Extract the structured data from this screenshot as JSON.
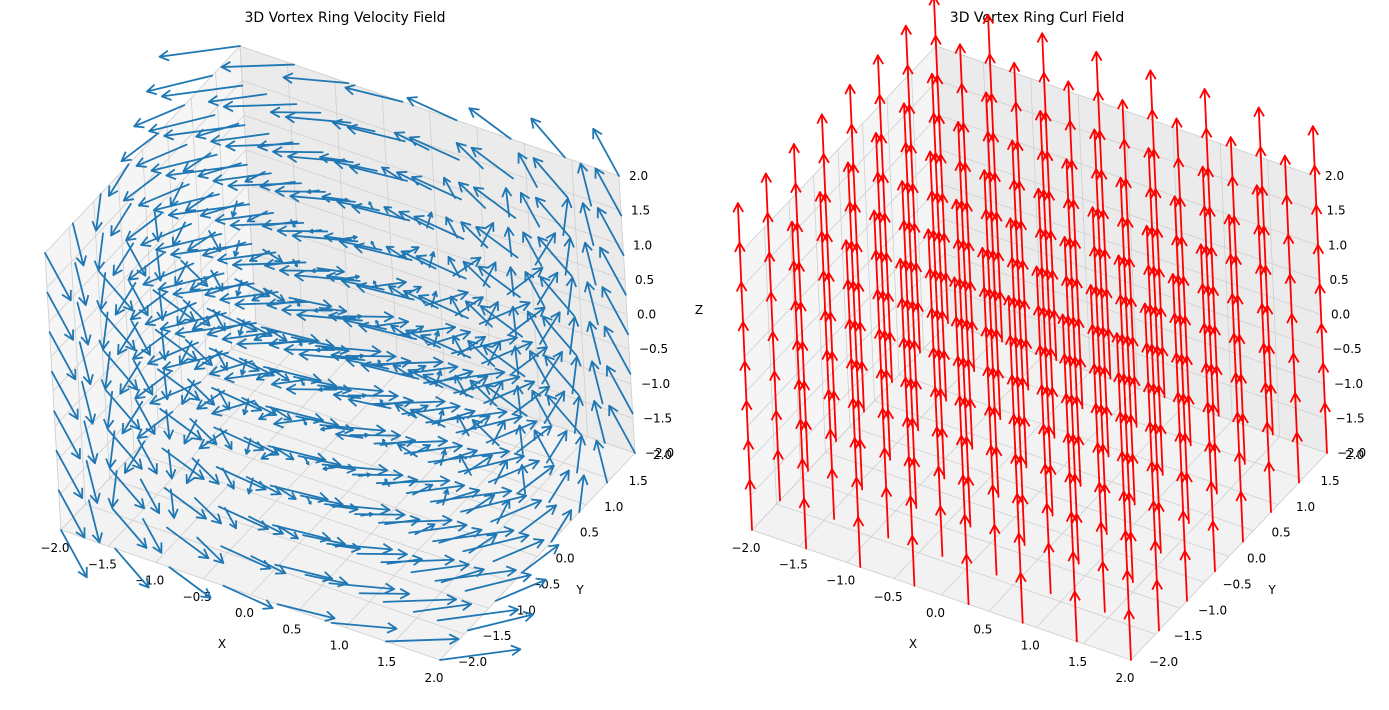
{
  "chart_data": [
    {
      "type": "quiver3d",
      "title": "3D Vortex Ring Velocity Field",
      "xlabel": "X",
      "ylabel": "Y",
      "zlabel": "Z",
      "xlim": [
        -2,
        2
      ],
      "ylim": [
        -2,
        2
      ],
      "zlim": [
        -2,
        2
      ],
      "xticks": [
        "−2.0",
        "−1.5",
        "−1.0",
        "−0.5",
        "0.0",
        "0.5",
        "1.0",
        "1.5",
        "2.0"
      ],
      "yticks": [
        "−2.0",
        "−1.5",
        "−1.0",
        "−0.5",
        "0.0",
        "0.5",
        "1.0",
        "1.5",
        "2.0"
      ],
      "zticks": [
        "−2.0",
        "−1.5",
        "−1.0",
        "−0.5",
        "0.0",
        "0.5",
        "1.0",
        "1.5",
        "2.0"
      ],
      "grid": true,
      "field": "circulation about the z-axis (vx = -y, vy = x), vz = 0",
      "grid_points_per_axis": 8,
      "color": "#1f77b4"
    },
    {
      "type": "quiver3d",
      "title": "3D Vortex Ring Curl Field",
      "xlabel": "X",
      "ylabel": "Y",
      "zlabel": "",
      "xlim": [
        -2,
        2
      ],
      "ylim": [
        -2,
        2
      ],
      "zlim": [
        -2,
        2
      ],
      "xticks": [
        "−2.0",
        "−1.5",
        "−1.0",
        "−0.5",
        "0.0",
        "0.5",
        "1.0",
        "1.5",
        "2.0"
      ],
      "yticks": [
        "−2.0",
        "−1.5",
        "−1.0",
        "−0.5",
        "0.0",
        "0.5",
        "1.0",
        "1.5",
        "2.0"
      ],
      "zticks": [
        "−2.0",
        "−1.5",
        "−1.0",
        "−0.5",
        "0.0",
        "0.5",
        "1.0",
        "1.5",
        "2.0"
      ],
      "grid": true,
      "field": "uniform +z (curl = 0, 0, 2)",
      "grid_points_per_axis": 8,
      "color": "#ff0000"
    }
  ]
}
